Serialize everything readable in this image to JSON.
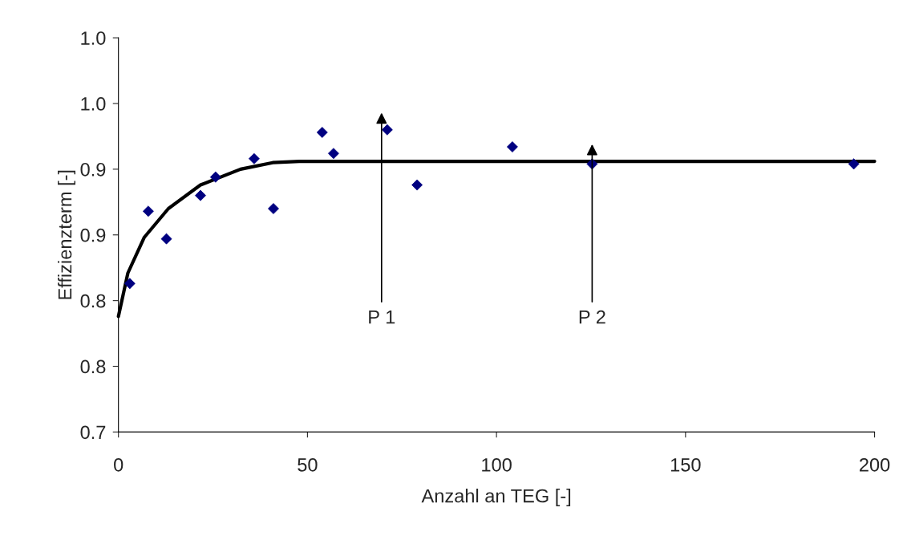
{
  "chart_data": {
    "type": "scatter",
    "xlabel": "Anzahl an TEG [-]",
    "ylabel": "Effizienzterm [-]",
    "xlim": [
      0,
      200
    ],
    "xticks": [
      0,
      50,
      100,
      150,
      200
    ],
    "ylim": [
      0.7,
      1.0
    ],
    "yticks": [
      {
        "value": 0.7,
        "label": "0.7"
      },
      {
        "value": 0.75,
        "label": "0.8"
      },
      {
        "value": 0.8,
        "label": "0.8"
      },
      {
        "value": 0.85,
        "label": "0.9"
      },
      {
        "value": 0.9,
        "label": "0.9"
      },
      {
        "value": 0.95,
        "label": "1.0"
      },
      {
        "value": 1.0,
        "label": "1.0"
      }
    ],
    "grid": false,
    "legend": false,
    "series": [
      {
        "color": "#000080",
        "marker": "diamond",
        "x": [
          3.0,
          7.9,
          12.7,
          21.7,
          25.7,
          35.9,
          41.0,
          53.9,
          56.9,
          71.1,
          79.0,
          104.2,
          125.3,
          194.5
        ],
        "values": [
          0.813,
          0.868,
          0.847,
          0.88,
          0.894,
          0.908,
          0.87,
          0.928,
          0.912,
          0.93,
          0.888,
          0.917,
          0.904,
          0.904
        ]
      },
      {
        "type": "line",
        "color": "#000000",
        "line_style": "solid",
        "x": [
          0,
          2.5,
          6.8,
          13.2,
          21.7,
          32.3,
          40.8,
          47.8,
          200
        ],
        "values": [
          0.788,
          0.821,
          0.848,
          0.87,
          0.888,
          0.9,
          0.905,
          0.906,
          0.906
        ]
      }
    ],
    "annotations": [
      "P 1",
      "P 2"
    ]
  }
}
